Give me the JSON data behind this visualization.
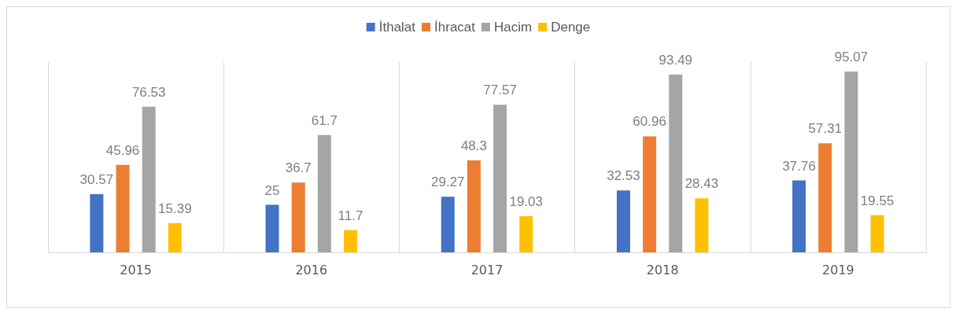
{
  "chart_data": {
    "type": "bar",
    "categories": [
      "2015",
      "2016",
      "2017",
      "2018",
      "2019"
    ],
    "series": [
      {
        "name": "İthalat",
        "color": "#4472c4",
        "values": [
          30.57,
          25,
          29.27,
          32.53,
          37.76
        ]
      },
      {
        "name": "İhracat",
        "color": "#ed7d31",
        "values": [
          45.96,
          36.7,
          48.3,
          60.96,
          57.31
        ]
      },
      {
        "name": "Hacim",
        "color": "#a5a5a5",
        "values": [
          76.53,
          61.7,
          77.57,
          93.49,
          95.07
        ]
      },
      {
        "name": "Denge",
        "color": "#ffc000",
        "values": [
          15.39,
          11.7,
          19.03,
          28.43,
          19.55
        ]
      }
    ],
    "data_labels": true,
    "grid": "x",
    "legend": "top"
  }
}
